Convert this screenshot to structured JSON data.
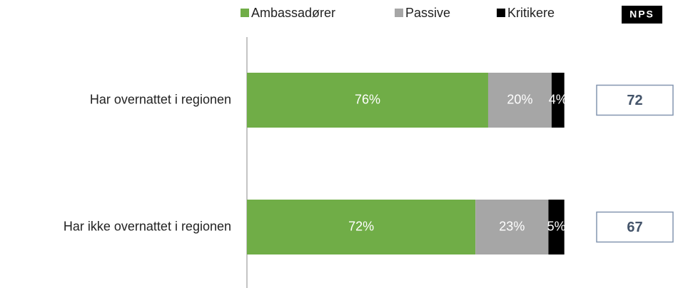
{
  "chart_data": {
    "type": "stacked-bar-horizontal",
    "categories": [
      "Har overnattet i regionen",
      "Har ikke overnattet i regionen"
    ],
    "series": [
      {
        "name": "Ambassadører",
        "color": "#70ad47",
        "values": [
          76,
          72
        ],
        "value_labels": [
          "76%",
          "72%"
        ]
      },
      {
        "name": "Passive",
        "color": "#a6a6a6",
        "values": [
          20,
          23
        ],
        "value_labels": [
          "20%",
          "23%"
        ]
      },
      {
        "name": "Kritikere",
        "color": "#000000",
        "values": [
          4,
          5
        ],
        "value_labels": [
          "4%",
          "5%"
        ]
      }
    ],
    "xlim": [
      0,
      100
    ],
    "nps": {
      "label": "NPS",
      "values": [
        72,
        67
      ]
    }
  }
}
